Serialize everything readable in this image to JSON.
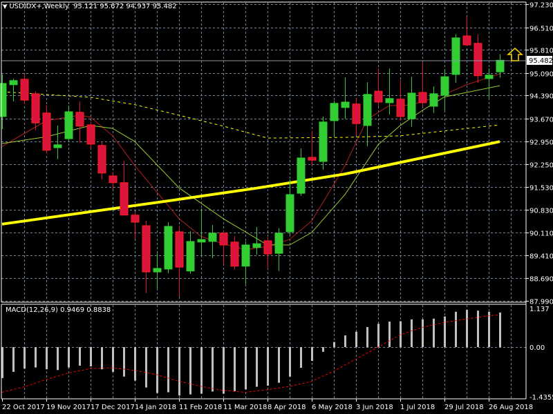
{
  "header": {
    "symbol": "USDIDX+,Weekly",
    "ohlc_text": "95.121 95.672 94.937 95.482",
    "current_price": "95.482"
  },
  "macd_header": {
    "label": "MACD(12,26,9) 0.9469 0.8838"
  },
  "colors": {
    "background": "#000000",
    "bull": "#32CD32",
    "bear": "#DC143C",
    "grid": "#778899",
    "ma_fast": "#B22222",
    "ma_mid": "#9ACD32",
    "ma_slow": "#FFFF00",
    "macd_hist": "#C0C0C0",
    "macd_signal": "#FF0000"
  },
  "chart_data": {
    "type": "candlestick",
    "price_axis": {
      "range": [
        87.99,
        97.23
      ],
      "ticks": [
        "97.230",
        "96.510",
        "95.810",
        "95.090",
        "94.390",
        "93.670",
        "92.950",
        "92.250",
        "91.530",
        "90.830",
        "90.110",
        "89.410",
        "88.690",
        "87.990"
      ]
    },
    "time_axis": {
      "labels": [
        {
          "bar": 0,
          "text": "22 Oct 2017"
        },
        {
          "bar": 4,
          "text": "19 Nov 2017"
        },
        {
          "bar": 8,
          "text": "17 Dec 2017"
        },
        {
          "bar": 12,
          "text": "14 Jan 2018"
        },
        {
          "bar": 16,
          "text": "11 Feb 2018"
        },
        {
          "bar": 20,
          "text": "11 Mar 2018"
        },
        {
          "bar": 24,
          "text": "8 Apr 2018"
        },
        {
          "bar": 28,
          "text": "6 May 2018"
        },
        {
          "bar": 32,
          "text": "3 Jun 2018"
        },
        {
          "bar": 36,
          "text": "1 Jul 2018"
        },
        {
          "bar": 40,
          "text": "29 Jul 2018"
        },
        {
          "bar": 44,
          "text": "26 Aug 2018"
        }
      ]
    },
    "candles_ohlc": [
      [
        93.73,
        95.04,
        93.34,
        94.76
      ],
      [
        94.72,
        94.91,
        94.2,
        94.85
      ],
      [
        94.89,
        95.06,
        94.12,
        94.24
      ],
      [
        94.44,
        94.52,
        93.3,
        93.53
      ],
      [
        93.84,
        94.07,
        92.57,
        92.68
      ],
      [
        92.76,
        93.45,
        92.4,
        92.85
      ],
      [
        93.04,
        94.07,
        92.95,
        93.88
      ],
      [
        93.86,
        94.2,
        92.91,
        93.43
      ],
      [
        93.47,
        93.56,
        92.72,
        92.87
      ],
      [
        92.83,
        92.95,
        91.77,
        91.97
      ],
      [
        91.88,
        92.01,
        91.47,
        91.67
      ],
      [
        91.67,
        92.35,
        90.66,
        90.66
      ],
      [
        90.66,
        90.76,
        89.92,
        90.44
      ],
      [
        90.33,
        90.48,
        88.23,
        88.89
      ],
      [
        88.89,
        89.47,
        88.36,
        89.0
      ],
      [
        88.98,
        90.44,
        88.85,
        90.31
      ],
      [
        90.14,
        90.33,
        88.12,
        89.04
      ],
      [
        88.92,
        90.16,
        88.83,
        89.84
      ],
      [
        89.82,
        90.87,
        89.41,
        89.9
      ],
      [
        89.84,
        90.35,
        89.32,
        90.1
      ],
      [
        90.1,
        90.16,
        89.13,
        89.73
      ],
      [
        89.82,
        90.01,
        88.96,
        89.07
      ],
      [
        89.07,
        89.84,
        88.51,
        89.73
      ],
      [
        89.65,
        90.29,
        89.43,
        89.77
      ],
      [
        89.86,
        89.97,
        89.0,
        89.45
      ],
      [
        89.47,
        90.25,
        88.92,
        90.1
      ],
      [
        90.14,
        91.77,
        90.05,
        91.3
      ],
      [
        91.34,
        92.74,
        91.26,
        92.44
      ],
      [
        92.46,
        93.26,
        92.2,
        92.37
      ],
      [
        92.33,
        93.73,
        92.07,
        93.56
      ],
      [
        93.6,
        94.22,
        93.13,
        94.14
      ],
      [
        94.01,
        94.95,
        93.66,
        94.18
      ],
      [
        94.12,
        94.29,
        93.13,
        93.51
      ],
      [
        93.45,
        94.8,
        92.8,
        94.42
      ],
      [
        94.52,
        95.23,
        94.05,
        94.18
      ],
      [
        94.16,
        95.23,
        93.79,
        94.29
      ],
      [
        94.27,
        94.87,
        93.6,
        93.73
      ],
      [
        93.66,
        94.97,
        93.41,
        94.46
      ],
      [
        94.48,
        95.43,
        94.03,
        94.16
      ],
      [
        94.05,
        94.67,
        93.84,
        94.44
      ],
      [
        94.39,
        95.17,
        93.92,
        94.97
      ],
      [
        95.04,
        96.29,
        94.78,
        96.18
      ],
      [
        96.24,
        96.84,
        95.92,
        95.96
      ],
      [
        96.01,
        96.29,
        94.78,
        95.0
      ],
      [
        94.91,
        95.23,
        94.29,
        95.02
      ],
      [
        95.121,
        95.672,
        94.937,
        95.482
      ]
    ],
    "moving_averages": [
      {
        "name": "ma_fast",
        "style": "thin",
        "points": [
          [
            0,
            92.8
          ],
          [
            4,
            93.6
          ],
          [
            6,
            93.71
          ],
          [
            7,
            93.77
          ],
          [
            8,
            93.71
          ],
          [
            10,
            93.13
          ],
          [
            12,
            92.2
          ],
          [
            16,
            90.55
          ],
          [
            18,
            89.99
          ],
          [
            20,
            89.77
          ],
          [
            22,
            89.58
          ],
          [
            24,
            89.69
          ],
          [
            26,
            89.9
          ],
          [
            28,
            90.48
          ],
          [
            30,
            91.62
          ],
          [
            31,
            92.2
          ],
          [
            33,
            93.64
          ],
          [
            35,
            94.07
          ],
          [
            37,
            94.09
          ],
          [
            40,
            94.42
          ],
          [
            42,
            94.72
          ],
          [
            45,
            95.06
          ]
        ]
      },
      {
        "name": "ma_mid",
        "style": "thin",
        "points": [
          [
            0,
            92.89
          ],
          [
            4,
            93.1
          ],
          [
            8,
            93.45
          ],
          [
            10,
            93.36
          ],
          [
            12,
            92.95
          ],
          [
            16,
            91.51
          ],
          [
            20,
            90.55
          ],
          [
            24,
            89.73
          ],
          [
            26,
            89.73
          ],
          [
            28,
            90.12
          ],
          [
            31,
            91.3
          ],
          [
            34,
            92.85
          ],
          [
            36,
            93.45
          ],
          [
            38,
            93.92
          ],
          [
            40,
            94.34
          ],
          [
            45,
            94.69
          ]
        ]
      },
      {
        "name": "ma_slow_dashed",
        "style": "dashed",
        "points": [
          [
            0,
            94.5
          ],
          [
            8,
            94.33
          ],
          [
            12,
            94.1
          ],
          [
            16,
            93.77
          ],
          [
            20,
            93.43
          ],
          [
            24,
            93.06
          ],
          [
            31,
            93.08
          ],
          [
            36,
            93.13
          ],
          [
            45,
            93.47
          ]
        ]
      },
      {
        "name": "ma_long_thick",
        "style": "thick",
        "points": [
          [
            0,
            90.38
          ],
          [
            16,
            91.15
          ],
          [
            23,
            91.5
          ],
          [
            31,
            91.94
          ],
          [
            45,
            92.95
          ]
        ]
      }
    ],
    "macd": {
      "params": "12,26,9",
      "range": [
        -1.4355,
        1.137
      ],
      "ticks": [
        "1.137",
        "0.00",
        "-1.4355"
      ],
      "histogram": [
        -0.85,
        -0.68,
        -0.59,
        -0.56,
        -0.61,
        -0.63,
        -0.56,
        -0.51,
        -0.53,
        -0.61,
        -0.68,
        -0.81,
        -0.92,
        -1.11,
        -1.26,
        -1.24,
        -1.33,
        -1.3,
        -1.28,
        -1.22,
        -1.28,
        -1.21,
        -1.16,
        -1.09,
        -1.06,
        -0.98,
        -0.81,
        -0.57,
        -0.38,
        -0.13,
        0.14,
        0.32,
        0.42,
        0.55,
        0.64,
        0.7,
        0.71,
        0.76,
        0.76,
        0.78,
        0.84,
        0.97,
        1.02,
        1.0,
        0.97,
        0.9469
      ],
      "signal_points": [
        [
          0,
          -1.24
        ],
        [
          2,
          -1.09
        ],
        [
          4,
          -0.89
        ],
        [
          6,
          -0.71
        ],
        [
          8,
          -0.59
        ],
        [
          10,
          -0.57
        ],
        [
          12,
          -0.64
        ],
        [
          14,
          -0.76
        ],
        [
          16,
          -0.94
        ],
        [
          18,
          -1.08
        ],
        [
          20,
          -1.19
        ],
        [
          22,
          -1.24
        ],
        [
          24,
          -1.17
        ],
        [
          26,
          -1.08
        ],
        [
          28,
          -0.94
        ],
        [
          30,
          -0.66
        ],
        [
          32,
          -0.33
        ],
        [
          34,
          0.0
        ],
        [
          36,
          0.34
        ],
        [
          38,
          0.54
        ],
        [
          40,
          0.68
        ],
        [
          42,
          0.77
        ],
        [
          44,
          0.86
        ],
        [
          45,
          0.8838
        ]
      ]
    }
  }
}
